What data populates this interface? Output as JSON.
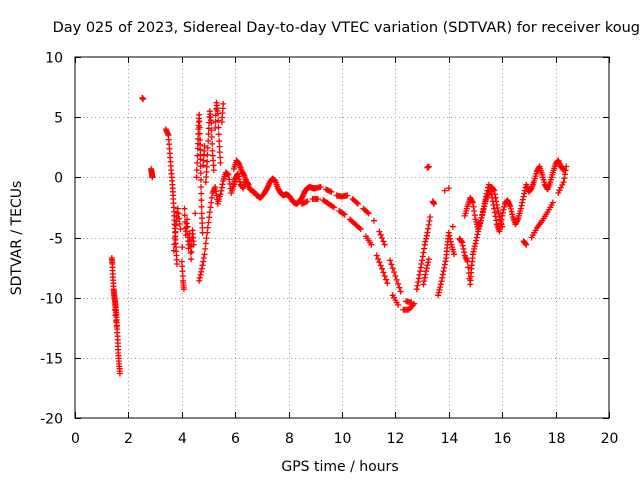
{
  "chart_data": {
    "type": "scatter",
    "title": "Day 025 of 2023, Sidereal Day-to-day VTEC variation (SDTVAR) for receiver koug",
    "xlabel": "GPS time / hours",
    "ylabel": "SDTVAR / TECUs",
    "xlim": [
      0,
      20
    ],
    "ylim": [
      -20,
      10
    ],
    "xticks": [
      0,
      2,
      4,
      6,
      8,
      10,
      12,
      14,
      16,
      18,
      20
    ],
    "yticks": [
      -20,
      -15,
      -10,
      -5,
      0,
      5,
      10
    ],
    "xtick_labels": [
      "0",
      "2",
      "4",
      "6",
      "8",
      "10",
      "12",
      "14",
      "16",
      "18",
      "20"
    ],
    "ytick_labels": [
      "-20",
      "-15",
      "-10",
      "-5",
      "0",
      "5",
      "10"
    ],
    "grid": true,
    "marker": "+",
    "color": "#ff0000",
    "series": [
      {
        "name": "SDTVAR",
        "points": [
          [
            1.38,
            -6.7
          ],
          [
            1.4,
            -7.2
          ],
          [
            1.42,
            -8.3
          ],
          [
            1.45,
            -9.3
          ],
          [
            1.47,
            -9.8
          ],
          [
            1.5,
            -10.3
          ],
          [
            1.52,
            -10.8
          ],
          [
            1.55,
            -11.4
          ],
          [
            1.57,
            -12.3
          ],
          [
            1.6,
            -13.5
          ],
          [
            1.62,
            -14.6
          ],
          [
            1.65,
            -15.5
          ],
          [
            1.68,
            -16.3
          ],
          [
            1.5,
            -11.0
          ],
          [
            1.58,
            -12.9
          ],
          [
            2.52,
            6.6
          ],
          [
            2.55,
            6.5
          ],
          [
            2.85,
            0.7
          ],
          [
            2.88,
            0.3
          ],
          [
            2.9,
            0.0
          ],
          [
            2.87,
            0.5
          ],
          [
            3.4,
            4.0
          ],
          [
            3.5,
            3.5
          ],
          [
            3.55,
            2.0
          ],
          [
            3.6,
            0.6
          ],
          [
            3.65,
            -0.6
          ],
          [
            3.68,
            -1.8
          ],
          [
            3.72,
            -3.2
          ],
          [
            3.75,
            -4.6
          ],
          [
            3.78,
            -5.8
          ],
          [
            3.82,
            -7.2
          ],
          [
            3.7,
            -6.1
          ],
          [
            3.78,
            -4.0
          ],
          [
            3.85,
            -2.6
          ],
          [
            3.95,
            -4.3
          ],
          [
            4.0,
            -7.0
          ],
          [
            4.05,
            -8.6
          ],
          [
            4.08,
            -9.3
          ],
          [
            4.02,
            -5.8
          ],
          [
            4.1,
            -2.6
          ],
          [
            4.15,
            -4.8
          ],
          [
            4.2,
            -3.5
          ],
          [
            4.25,
            -5.9
          ],
          [
            4.3,
            -4.7
          ],
          [
            4.35,
            -6.8
          ],
          [
            4.4,
            -4.4
          ],
          [
            4.45,
            -5.6
          ],
          [
            4.5,
            -3.0
          ],
          [
            4.55,
            0.0
          ],
          [
            4.6,
            2.4
          ],
          [
            4.62,
            4.0
          ],
          [
            4.65,
            5.2
          ],
          [
            4.68,
            3.1
          ],
          [
            4.7,
            1.5
          ],
          [
            4.72,
            -0.8
          ],
          [
            4.75,
            -3.0
          ],
          [
            4.78,
            -4.6
          ],
          [
            4.8,
            1.0
          ],
          [
            4.85,
            2.6
          ],
          [
            4.9,
            -0.4
          ],
          [
            4.95,
            1.3
          ],
          [
            5.0,
            3.6
          ],
          [
            5.05,
            5.5
          ],
          [
            5.1,
            4.5
          ],
          [
            5.15,
            2.2
          ],
          [
            5.2,
            0.6
          ],
          [
            5.25,
            4.1
          ],
          [
            5.3,
            6.2
          ],
          [
            5.35,
            5.3
          ],
          [
            5.4,
            3.0
          ],
          [
            5.45,
            1.2
          ],
          [
            5.5,
            4.6
          ],
          [
            5.55,
            6.1
          ],
          [
            4.65,
            -8.6
          ],
          [
            4.75,
            -7.6
          ],
          [
            4.85,
            -6.4
          ],
          [
            4.95,
            -4.6
          ],
          [
            5.05,
            -2.9
          ],
          [
            5.15,
            -1.3
          ],
          [
            5.25,
            -0.8
          ],
          [
            5.35,
            -2.2
          ],
          [
            5.45,
            -1.4
          ],
          [
            5.55,
            -0.3
          ],
          [
            5.65,
            0.4
          ],
          [
            5.75,
            0.2
          ],
          [
            5.85,
            -1.3
          ],
          [
            5.95,
            -0.6
          ],
          [
            6.0,
            -0.1
          ],
          [
            6.1,
            0.3
          ],
          [
            6.2,
            -0.6
          ],
          [
            6.3,
            -0.9
          ],
          [
            6.4,
            -0.3
          ],
          [
            6.5,
            -0.6
          ],
          [
            5.95,
            0.7
          ],
          [
            6.05,
            1.4
          ],
          [
            6.15,
            1.1
          ],
          [
            6.25,
            0.5
          ],
          [
            6.35,
            0.1
          ],
          [
            6.45,
            -0.5
          ],
          [
            6.55,
            -1.0
          ],
          [
            6.7,
            -1.2
          ],
          [
            6.8,
            -1.5
          ],
          [
            6.95,
            -1.7
          ],
          [
            7.1,
            -1.3
          ],
          [
            7.2,
            -0.9
          ],
          [
            7.3,
            -0.4
          ],
          [
            7.4,
            -0.1
          ],
          [
            7.5,
            -0.3
          ],
          [
            7.6,
            -0.9
          ],
          [
            7.7,
            -1.3
          ],
          [
            7.8,
            -1.5
          ],
          [
            7.9,
            -1.4
          ],
          [
            8.0,
            -1.5
          ],
          [
            8.1,
            -1.8
          ],
          [
            8.2,
            -2.1
          ],
          [
            8.3,
            -2.2
          ],
          [
            8.4,
            -2.0
          ],
          [
            8.5,
            -1.7
          ],
          [
            8.6,
            -1.2
          ],
          [
            8.7,
            -0.9
          ],
          [
            8.8,
            -0.8
          ],
          [
            8.9,
            -0.9
          ],
          [
            9.0,
            -0.9
          ],
          [
            9.2,
            -0.8
          ],
          [
            9.4,
            -1.0
          ],
          [
            9.6,
            -1.2
          ],
          [
            9.8,
            -1.5
          ],
          [
            10.0,
            -1.6
          ],
          [
            10.2,
            -1.5
          ],
          [
            10.4,
            -1.8
          ],
          [
            10.6,
            -2.2
          ],
          [
            10.8,
            -2.6
          ],
          [
            11.0,
            -3.0
          ],
          [
            8.5,
            -2.2
          ],
          [
            8.7,
            -2.0
          ],
          [
            8.9,
            -1.8
          ],
          [
            9.1,
            -1.8
          ],
          [
            9.3,
            -1.9
          ],
          [
            9.5,
            -2.2
          ],
          [
            9.7,
            -2.5
          ],
          [
            9.9,
            -2.8
          ],
          [
            10.1,
            -3.1
          ],
          [
            10.3,
            -3.5
          ],
          [
            10.5,
            -3.9
          ],
          [
            10.7,
            -4.3
          ],
          [
            10.9,
            -4.9
          ],
          [
            11.1,
            -5.6
          ],
          [
            11.3,
            -6.5
          ],
          [
            11.5,
            -7.6
          ],
          [
            11.7,
            -8.8
          ],
          [
            11.9,
            -9.8
          ],
          [
            12.1,
            -10.6
          ],
          [
            12.3,
            -11.0
          ],
          [
            12.5,
            -11.0
          ],
          [
            12.7,
            -10.5
          ],
          [
            11.2,
            -3.6
          ],
          [
            11.4,
            -4.5
          ],
          [
            11.6,
            -5.6
          ],
          [
            11.8,
            -6.9
          ],
          [
            12.0,
            -8.2
          ],
          [
            12.2,
            -9.5
          ],
          [
            12.4,
            -10.3
          ],
          [
            12.6,
            -10.4
          ],
          [
            12.8,
            -9.3
          ],
          [
            12.9,
            -8.1
          ],
          [
            13.0,
            -6.9
          ],
          [
            13.1,
            -5.6
          ],
          [
            13.2,
            -4.6
          ],
          [
            13.3,
            -3.3
          ],
          [
            13.05,
            -8.9
          ],
          [
            13.15,
            -7.8
          ],
          [
            13.25,
            -6.8
          ],
          [
            13.2,
            0.8
          ],
          [
            13.25,
            0.9
          ],
          [
            13.4,
            -2.0
          ],
          [
            13.45,
            -2.2
          ],
          [
            13.6,
            -9.8
          ],
          [
            13.7,
            -8.9
          ],
          [
            13.8,
            -7.8
          ],
          [
            13.9,
            -6.7
          ],
          [
            13.95,
            -5.6
          ],
          [
            14.0,
            -4.6
          ],
          [
            14.1,
            -5.6
          ],
          [
            14.2,
            -6.4
          ],
          [
            14.15,
            -4.1
          ],
          [
            14.0,
            -0.9
          ],
          [
            13.85,
            -1.1
          ],
          [
            14.4,
            -5.1
          ],
          [
            14.5,
            -5.4
          ],
          [
            14.6,
            -6.5
          ],
          [
            14.7,
            -7.0
          ],
          [
            14.8,
            -8.9
          ],
          [
            14.85,
            -7.6
          ],
          [
            14.9,
            -6.4
          ],
          [
            15.0,
            -5.5
          ],
          [
            15.1,
            -4.5
          ],
          [
            15.2,
            -3.6
          ],
          [
            15.3,
            -2.6
          ],
          [
            15.4,
            -1.8
          ],
          [
            15.5,
            -1.2
          ],
          [
            15.6,
            -0.8
          ],
          [
            15.7,
            -1.1
          ],
          [
            15.8,
            -2.3
          ],
          [
            15.9,
            -3.3
          ],
          [
            16.0,
            -4.1
          ],
          [
            14.6,
            -3.2
          ],
          [
            14.7,
            -2.4
          ],
          [
            14.8,
            -1.7
          ],
          [
            14.9,
            -2.1
          ],
          [
            15.0,
            -3.5
          ],
          [
            15.1,
            -4.3
          ],
          [
            15.2,
            -3.6
          ],
          [
            15.3,
            -2.7
          ],
          [
            15.4,
            -1.6
          ],
          [
            15.5,
            -0.6
          ],
          [
            15.6,
            -1.4
          ],
          [
            15.7,
            -2.6
          ],
          [
            15.8,
            -3.9
          ],
          [
            15.9,
            -4.5
          ],
          [
            16.0,
            -3.2
          ],
          [
            16.1,
            -2.2
          ],
          [
            16.2,
            -1.9
          ],
          [
            16.3,
            -2.4
          ],
          [
            16.4,
            -3.3
          ],
          [
            16.5,
            -3.9
          ],
          [
            16.6,
            -3.4
          ],
          [
            16.7,
            -2.6
          ],
          [
            16.8,
            -1.6
          ],
          [
            16.9,
            -0.6
          ],
          [
            17.0,
            -1.2
          ],
          [
            17.1,
            -0.9
          ],
          [
            17.2,
            -0.3
          ],
          [
            17.3,
            0.5
          ],
          [
            17.4,
            0.9
          ],
          [
            17.5,
            0.2
          ],
          [
            17.6,
            -0.6
          ],
          [
            17.7,
            -1.0
          ],
          [
            17.8,
            -0.4
          ],
          [
            17.9,
            0.4
          ],
          [
            18.0,
            1.1
          ],
          [
            18.1,
            1.4
          ],
          [
            18.2,
            0.9
          ],
          [
            18.3,
            0.6
          ],
          [
            16.8,
            -5.3
          ],
          [
            16.9,
            -5.6
          ],
          [
            17.1,
            -5.0
          ],
          [
            17.3,
            -4.2
          ],
          [
            17.5,
            -3.6
          ],
          [
            17.7,
            -2.9
          ],
          [
            17.9,
            -2.1
          ],
          [
            18.1,
            -1.3
          ],
          [
            18.3,
            -0.4
          ],
          [
            18.4,
            0.9
          ]
        ]
      }
    ]
  }
}
